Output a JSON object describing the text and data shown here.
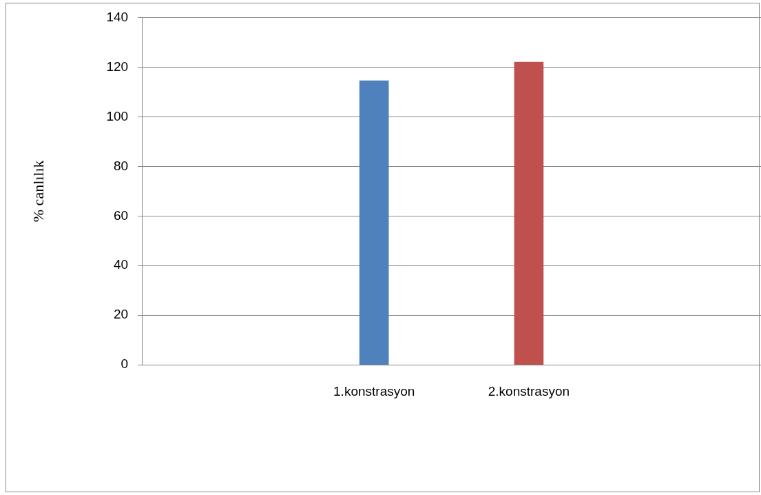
{
  "chart_data": {
    "type": "bar",
    "ylabel": "% canlılık",
    "categories": [
      null,
      "1.konstrasyon",
      "2.konstrasyon",
      null
    ],
    "values": [
      null,
      114.5,
      122,
      null
    ],
    "colors": [
      "#4f81bd",
      "#4f81bd",
      "#c0504d",
      "#c0504d"
    ],
    "ylim": [
      0,
      140
    ],
    "yticks": [
      0,
      20,
      40,
      60,
      80,
      100,
      120,
      140
    ],
    "grid": "y"
  }
}
